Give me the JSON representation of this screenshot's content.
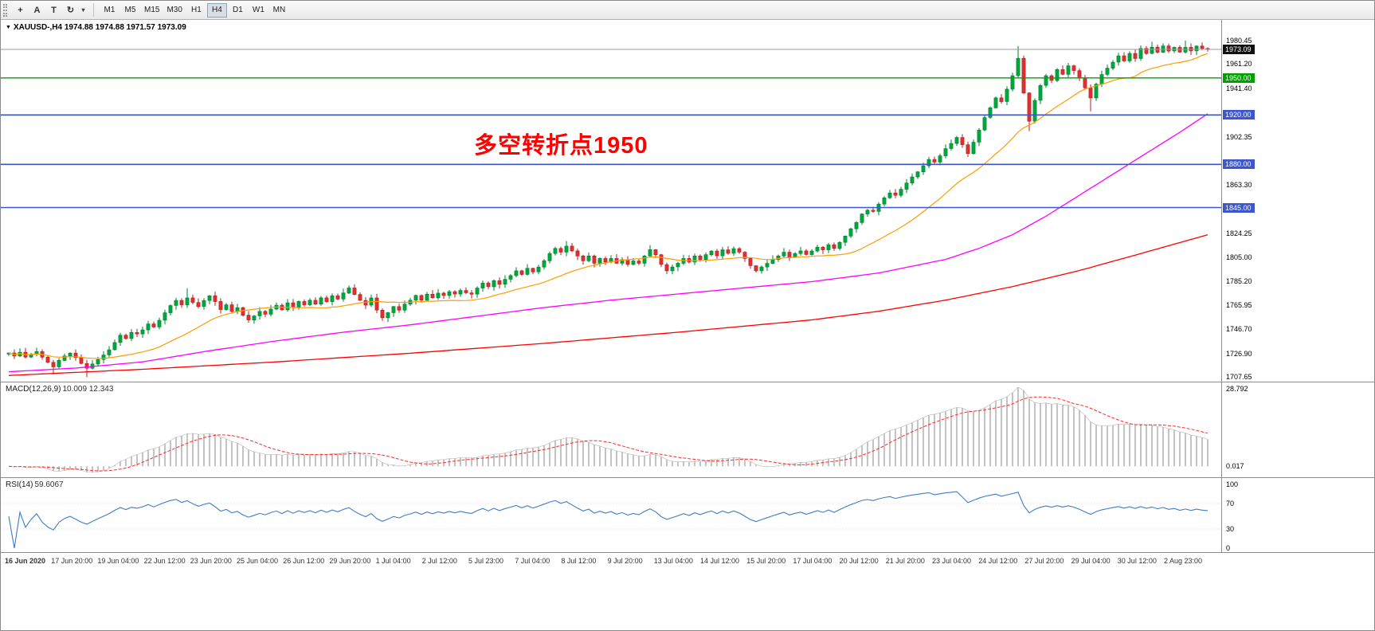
{
  "colors": {
    "up": "#00a73e",
    "up_stroke": "#00822f",
    "down": "#e12f2f",
    "down_stroke": "#b02020",
    "ma_fast": "#ff9c00",
    "ma_mid": "#ff00ff",
    "ma_slow": "#ff0000",
    "macd_hist": "#b6b6b6",
    "macd_signal": "#ff2a2a",
    "rsi_line": "#3f7cc4",
    "rsi_level": "#bdbdbd",
    "current_price_line": "#9a9a9a"
  },
  "toolbar": {
    "tools": [
      {
        "id": "crosshair",
        "glyph": "+"
      },
      {
        "id": "arrow-a",
        "glyph": "A"
      },
      {
        "id": "text",
        "glyph": "T"
      },
      {
        "id": "cycle",
        "glyph": "↻"
      }
    ],
    "caret": "▾",
    "timeframes": [
      "M1",
      "M5",
      "M15",
      "M30",
      "H1",
      "H4",
      "D1",
      "W1",
      "MN"
    ],
    "active_timeframe": "H4"
  },
  "chart": {
    "title_marker": "▼",
    "title": "XAUUSD-,H4  1974.88 1974.88 1971.57 1973.09",
    "annotation": "多空转折点1950",
    "price_axis_labels": [
      "1980.45",
      "1961.20",
      "1941.40",
      "1902.35",
      "1863.30",
      "1824.25",
      "1805.00",
      "1785.20",
      "1765.95",
      "1746.70",
      "1726.90",
      "1707.65"
    ],
    "hlines": [
      {
        "name": "current-price",
        "price": 1973.09,
        "label": "1973.09",
        "color": "#9a9a9a",
        "width": 1,
        "badge": "#111111"
      },
      {
        "name": "level-1950",
        "price": 1950.0,
        "label": "1950.00",
        "color": "#00a000",
        "width": 1.4,
        "badge": "#00a000"
      },
      {
        "name": "level-1920",
        "price": 1920.0,
        "label": "1920.00",
        "color": "#3d56cc",
        "width": 1.6,
        "badge": "#3d56cc"
      },
      {
        "name": "level-1880",
        "price": 1880.0,
        "label": "1880.00",
        "color": "#3d56cc",
        "width": 1.6,
        "badge": "#3d56cc"
      },
      {
        "name": "level-1845",
        "price": 1845.0,
        "label": "1845.00",
        "color": "#3d56cc",
        "width": 1.6,
        "badge": "#3d56cc"
      }
    ]
  },
  "macd_panel": {
    "name": "MACD(12,26,9)",
    "values": "10.009 12.343",
    "axis_top": "28.792",
    "axis_bottom": "0.017"
  },
  "rsi_panel": {
    "name": "RSI(14)",
    "value": "59.6067",
    "axis": [
      100,
      70,
      30,
      0
    ],
    "levels": [
      70,
      30
    ]
  },
  "time_axis": {
    "labels": [
      "16 Jun 2020",
      "17 Jun 20:00",
      "19 Jun 04:00",
      "22 Jun 12:00",
      "23 Jun 20:00",
      "25 Jun 04:00",
      "26 Jun 12:00",
      "29 Jun 20:00",
      "1 Jul 04:00",
      "2 Jul 12:00",
      "5 Jul 23:00",
      "7 Jul 04:00",
      "8 Jul 12:00",
      "9 Jul 20:00",
      "13 Jul 04:00",
      "14 Jul 12:00",
      "15 Jul 20:00",
      "17 Jul 04:00",
      "20 Jul 12:00",
      "21 Jul 20:00",
      "23 Jul 04:00",
      "24 Jul 12:00",
      "27 Jul 20:00",
      "29 Jul 04:00",
      "30 Jul 12:00",
      "2 Aug 23:00"
    ]
  },
  "chart_data": {
    "type": "candlestick",
    "symbol": "XAUUSD-",
    "period": "H4",
    "last_ohlc": {
      "open": 1974.88,
      "high": 1974.88,
      "low": 1971.57,
      "close": 1973.09
    },
    "current_price": 1973.09,
    "horizontal_levels": [
      1950,
      1920,
      1880,
      1845
    ],
    "price_range": {
      "axis_top_label": 1980.45,
      "axis_bottom_label": 1707.65,
      "plot_max": 1997,
      "plot_span": 293
    },
    "ma_fast_period": 20,
    "ma_mid_anchors": [
      [
        0,
        1712
      ],
      [
        12,
        1715
      ],
      [
        24,
        1720
      ],
      [
        36,
        1729
      ],
      [
        48,
        1737
      ],
      [
        60,
        1744
      ],
      [
        72,
        1750
      ],
      [
        84,
        1757
      ],
      [
        96,
        1764
      ],
      [
        108,
        1770
      ],
      [
        120,
        1775
      ],
      [
        132,
        1780
      ],
      [
        144,
        1785
      ],
      [
        156,
        1792
      ],
      [
        168,
        1803
      ],
      [
        174,
        1812
      ],
      [
        180,
        1823
      ],
      [
        186,
        1838
      ],
      [
        192,
        1855
      ],
      [
        198,
        1872
      ],
      [
        204,
        1889
      ],
      [
        210,
        1906
      ],
      [
        215,
        1921
      ]
    ],
    "ma_slow_anchors": [
      [
        0,
        1709
      ],
      [
        24,
        1714
      ],
      [
        48,
        1720
      ],
      [
        72,
        1727
      ],
      [
        96,
        1735
      ],
      [
        120,
        1744
      ],
      [
        144,
        1754
      ],
      [
        156,
        1761
      ],
      [
        168,
        1770
      ],
      [
        180,
        1781
      ],
      [
        192,
        1794
      ],
      [
        204,
        1809
      ],
      [
        215,
        1823
      ]
    ],
    "macd": {
      "fast": 12,
      "slow": 26,
      "signal": 9,
      "last_values": [
        10.009,
        12.343
      ],
      "axis_max": 28.792
    },
    "rsi": {
      "period": 14,
      "last_value": 59.6067
    },
    "candles": {
      "closes": [
        1727.2,
        1724.8,
        1727.9,
        1723.9,
        1726.1,
        1728.3,
        1723.8,
        1719.6,
        1715.9,
        1721.2,
        1724.8,
        1727.1,
        1723.5,
        1718.7,
        1714.8,
        1718.3,
        1721.9,
        1725.6,
        1729.8,
        1735.7,
        1741.6,
        1738.9,
        1743.8,
        1742.6,
        1745.9,
        1750.8,
        1748.2,
        1753.7,
        1759.8,
        1765.6,
        1769.8,
        1766.2,
        1771.8,
        1768.1,
        1764.9,
        1769.7,
        1773.6,
        1768.9,
        1762.3,
        1766.2,
        1760.8,
        1763.9,
        1757.8,
        1753.9,
        1757.2,
        1760.9,
        1758.6,
        1762.8,
        1765.9,
        1762.1,
        1767.8,
        1763.9,
        1768.9,
        1766.2,
        1769.9,
        1766.8,
        1771.9,
        1768.8,
        1773.6,
        1770.9,
        1775.8,
        1779.9,
        1774.6,
        1769.8,
        1765.9,
        1771.8,
        1761.9,
        1755.8,
        1759.9,
        1764.8,
        1761.9,
        1766.8,
        1769.9,
        1773.8,
        1769.9,
        1774.8,
        1771.9,
        1775.7,
        1773.8,
        1776.9,
        1774.9,
        1777.8,
        1775.9,
        1774.8,
        1779.8,
        1783.9,
        1780.9,
        1785.8,
        1782.9,
        1786.9,
        1789.9,
        1793.8,
        1790.9,
        1795.8,
        1792.9,
        1796.8,
        1801.9,
        1807.8,
        1811.9,
        1808.9,
        1813.8,
        1809.9,
        1805.8,
        1801.9,
        1805.8,
        1799.9,
        1803.8,
        1800.9,
        1803.8,
        1799.9,
        1802.8,
        1798.9,
        1801.8,
        1799.9,
        1805.8,
        1810.9,
        1806.8,
        1798.9,
        1793.8,
        1796.9,
        1799.9,
        1803.8,
        1800.9,
        1805.8,
        1802.9,
        1806.8,
        1809.8,
        1805.9,
        1810.8,
        1807.9,
        1811.8,
        1808.9,
        1803.8,
        1797.9,
        1793.8,
        1796.9,
        1799.8,
        1802.9,
        1805.8,
        1808.9,
        1804.9,
        1807.8,
        1809.9,
        1806.9,
        1809.8,
        1812.9,
        1810.8,
        1814.9,
        1811.9,
        1816.8,
        1821.9,
        1827.8,
        1832.9,
        1839.8,
        1842.9,
        1841.8,
        1847.8,
        1852.9,
        1856.8,
        1854.9,
        1859.8,
        1864.9,
        1869.8,
        1873.9,
        1878.8,
        1883.9,
        1881.8,
        1886.9,
        1892.8,
        1896.9,
        1901.8,
        1895.9,
        1888.8,
        1897.9,
        1907.8,
        1917.9,
        1925.8,
        1933.9,
        1930.8,
        1940.9,
        1951.8,
        1965.9,
        1937.8,
        1914.9,
        1931.8,
        1943.9,
        1951.8,
        1947.9,
        1956.8,
        1952.9,
        1959.8,
        1955.9,
        1949.8,
        1941.9,
        1933.8,
        1944.9,
        1952.8,
        1957.9,
        1962.8,
        1967.9,
        1963.8,
        1969.9,
        1965.8,
        1973.9,
        1969.8,
        1974.9,
        1970.8,
        1975.9,
        1971.8,
        1974.8,
        1970.9,
        1974.8,
        1971.9,
        1975.8,
        1973.9,
        1973.1
      ],
      "wick_overrides": {
        "8": {
          "l": 1709.8
        },
        "14": {
          "l": 1707.7
        },
        "32": {
          "h": 1779.6
        },
        "61": {
          "h": 1781.9
        },
        "67": {
          "l": 1753.2
        },
        "100": {
          "h": 1817.9
        },
        "115": {
          "h": 1814.6
        },
        "119": {
          "l": 1790.9
        },
        "134": {
          "l": 1792.2
        },
        "181": {
          "h": 1975.9
        },
        "183": {
          "l": 1906.9
        },
        "194": {
          "l": 1922.9
        },
        "205": {
          "h": 1979.3
        },
        "211": {
          "h": 1980.2
        }
      }
    }
  }
}
